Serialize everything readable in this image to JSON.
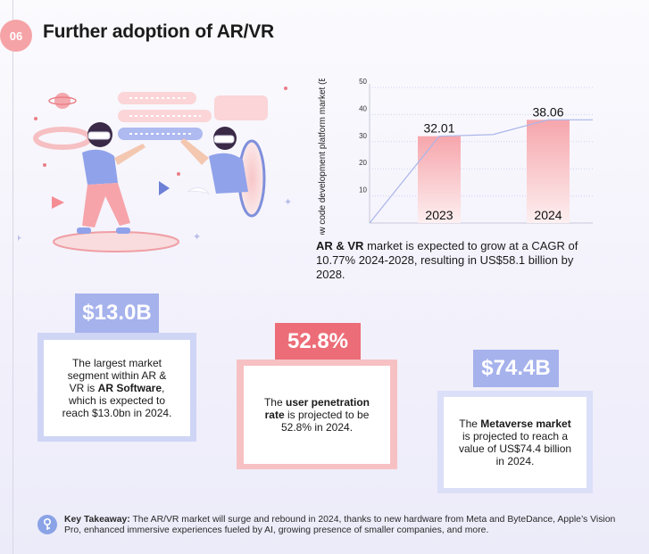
{
  "header": {
    "number": "06",
    "title": "Further adoption of AR/VR"
  },
  "chart_data": {
    "type": "bar",
    "categories": [
      "2023",
      "2024"
    ],
    "values": [
      32.01,
      38.06
    ],
    "ylabel": "Low code development platform market (Billion $)",
    "yticks": [
      "10",
      "20",
      "30",
      "40",
      "50"
    ],
    "ylim": [
      0,
      50
    ],
    "trend_line": true,
    "grid": true
  },
  "market_text": {
    "bold": "AR & VR",
    "rest": " market is expected to grow at a CAGR of 10.77% 2024-2028, resulting in US$58.1 billion by 2028."
  },
  "stats": [
    {
      "value": "$13.0B",
      "pre": "The largest market segment within AR & VR is ",
      "bold": "AR Software",
      "post": ", which is expected to reach $13.0bn in 2024.",
      "color": "#a6b2ec"
    },
    {
      "value": "52.8%",
      "pre": "The ",
      "bold": "user penetration rate",
      "post": " is projected to be 52.8% in 2024.",
      "color": "#ec6d77"
    },
    {
      "value": "$74.4B",
      "pre": "The ",
      "bold": "Metaverse market",
      "post": " is projected to reach a value of US$74.4 billion in 2024.",
      "color": "#a6b2ec"
    }
  ],
  "takeaway": {
    "label": "Key Takeaway:",
    "text": " The AR/VR market will surge and rebound in 2024, thanks to new hardware from Meta and ByteDance, Apple’s Vision Pro, enhanced immersive experiences fueled by AI, growing presence of smaller companies, and more."
  }
}
